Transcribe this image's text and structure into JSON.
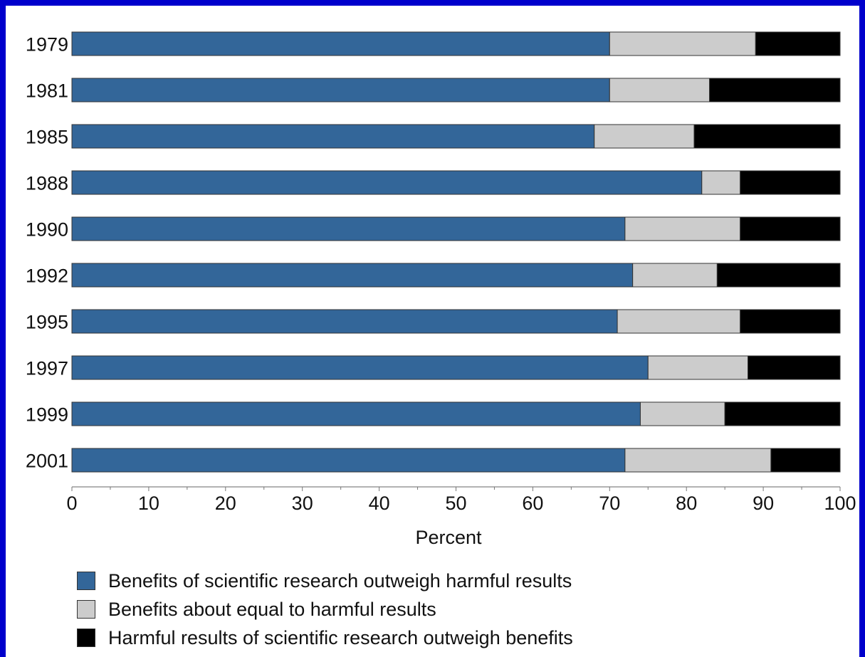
{
  "chart_data": {
    "type": "bar",
    "orientation": "horizontal",
    "stacked": true,
    "categories": [
      "1979",
      "1981",
      "1985",
      "1988",
      "1990",
      "1992",
      "1995",
      "1997",
      "1999",
      "2001"
    ],
    "series": [
      {
        "name": "Benefits of scientific research outweigh harmful results",
        "color": "#336699",
        "values": [
          70,
          70,
          68,
          82,
          72,
          73,
          71,
          75,
          74,
          72
        ]
      },
      {
        "name": "Benefits about equal to harmful results",
        "color": "#cccccc",
        "values": [
          19,
          13,
          13,
          5,
          15,
          11,
          16,
          13,
          11,
          19
        ]
      },
      {
        "name": "Harmful results of scientific research outweigh benefits",
        "color": "#000000",
        "values": [
          11,
          17,
          19,
          13,
          13,
          16,
          13,
          12,
          15,
          9
        ]
      }
    ],
    "xlabel": "Percent",
    "xlim": [
      0,
      100
    ],
    "xticks": [
      "0",
      "10",
      "20",
      "30",
      "40",
      "50",
      "60",
      "70",
      "80",
      "90",
      "100"
    ],
    "grid": false,
    "legend_position": "bottom"
  }
}
